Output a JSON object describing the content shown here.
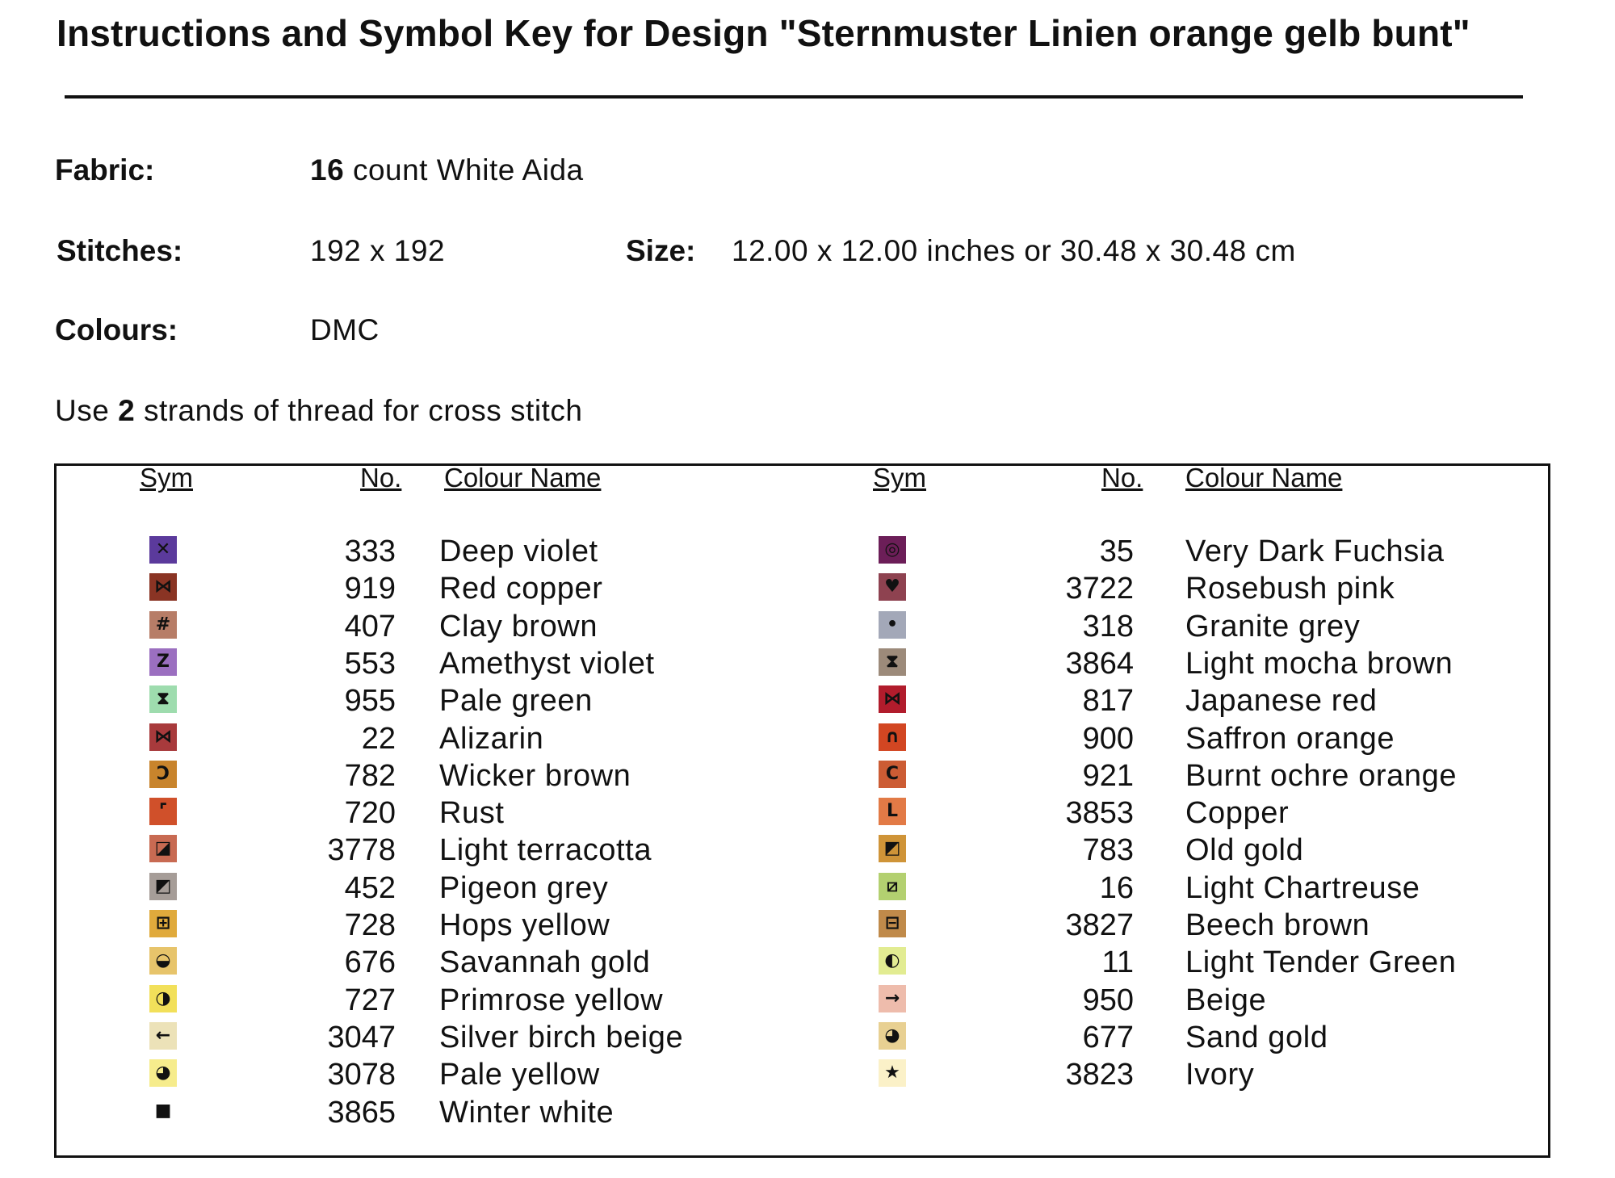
{
  "title": "Instructions and Symbol Key for Design \"Sternmuster Linien orange gelb bunt\"",
  "fabric": {
    "label": "Fabric:",
    "count": "16",
    "rest": "count White Aida"
  },
  "stitches": {
    "label": "Stitches:",
    "value": "192 x 192"
  },
  "size": {
    "label": "Size:",
    "value": "12.00 x 12.00 inches or 30.48 x 30.48 cm"
  },
  "colours": {
    "label": "Colours:",
    "value": "DMC"
  },
  "strands": {
    "prefix": "Use",
    "count": "2",
    "suffix": "strands of thread for cross stitch"
  },
  "key": {
    "headers": {
      "sym": "Sym",
      "no": "No.",
      "name": "Colour Name"
    },
    "left": [
      {
        "glyph": "✕",
        "color": "#5b3a9c",
        "no": "333",
        "name": "Deep violet"
      },
      {
        "glyph": "⋈",
        "color": "#8a3424",
        "no": "919",
        "name": "Red copper"
      },
      {
        "glyph": "#",
        "color": "#b77d67",
        "no": "407",
        "name": "Clay brown"
      },
      {
        "glyph": "Z",
        "color": "#9b6fc0",
        "no": "553",
        "name": "Amethyst violet"
      },
      {
        "glyph": "⧗",
        "color": "#9edcae",
        "no": "955",
        "name": "Pale green"
      },
      {
        "glyph": "⋈",
        "color": "#a83a3c",
        "no": "22",
        "name": "Alizarin"
      },
      {
        "glyph": "Ͻ",
        "color": "#c8842c",
        "no": "782",
        "name": "Wicker brown"
      },
      {
        "glyph": "⌜",
        "color": "#d0502a",
        "no": "720",
        "name": "Rust"
      },
      {
        "glyph": "◪",
        "color": "#c86a52",
        "no": "3778",
        "name": "Light terracotta"
      },
      {
        "glyph": "◩",
        "color": "#a69d98",
        "no": "452",
        "name": "Pigeon grey"
      },
      {
        "glyph": "⊞",
        "color": "#e0aa3c",
        "no": "728",
        "name": "Hops yellow"
      },
      {
        "glyph": "◒",
        "color": "#e7c46b",
        "no": "676",
        "name": "Savannah gold"
      },
      {
        "glyph": "◑",
        "color": "#f2e05a",
        "no": "727",
        "name": "Primrose yellow"
      },
      {
        "glyph": "←",
        "color": "#ece2b8",
        "no": "3047",
        "name": "Silver birch beige"
      },
      {
        "glyph": "◕",
        "color": "#f6ec8c",
        "no": "3078",
        "name": "Pale yellow"
      },
      {
        "glyph": "■",
        "color": "#ffffff",
        "no": "3865",
        "name": "Winter white"
      }
    ],
    "right": [
      {
        "glyph": "◎",
        "color": "#6c1e58",
        "no": "35",
        "name": "Very Dark Fuchsia"
      },
      {
        "glyph": "♥",
        "color": "#8e4250",
        "no": "3722",
        "name": "Rosebush pink"
      },
      {
        "glyph": "•",
        "color": "#a3a8b8",
        "no": "318",
        "name": "Granite grey"
      },
      {
        "glyph": "⧗",
        "color": "#9c8a7a",
        "no": "3864",
        "name": "Light mocha brown"
      },
      {
        "glyph": "⋈",
        "color": "#b11c2c",
        "no": "817",
        "name": "Japanese red"
      },
      {
        "glyph": "∩",
        "color": "#d24622",
        "no": "900",
        "name": "Saffron orange"
      },
      {
        "glyph": "C",
        "color": "#cc5c34",
        "no": "921",
        "name": "Burnt ochre orange"
      },
      {
        "glyph": "L",
        "color": "#e27a46",
        "no": "3853",
        "name": "Copper"
      },
      {
        "glyph": "◩",
        "color": "#cf9438",
        "no": "783",
        "name": "Old gold"
      },
      {
        "glyph": "⧄",
        "color": "#b3d070",
        "no": "16",
        "name": "Light Chartreuse"
      },
      {
        "glyph": "⊟",
        "color": "#c08a4a",
        "no": "3827",
        "name": "Beech brown"
      },
      {
        "glyph": "◐",
        "color": "#e2ec92",
        "no": "11",
        "name": "Light Tender Green"
      },
      {
        "glyph": "→",
        "color": "#eebcac",
        "no": "950",
        "name": "Beige"
      },
      {
        "glyph": "◕",
        "color": "#e8d092",
        "no": "677",
        "name": "Sand gold"
      },
      {
        "glyph": "★",
        "color": "#fbf1c8",
        "no": "3823",
        "name": "Ivory"
      }
    ]
  }
}
